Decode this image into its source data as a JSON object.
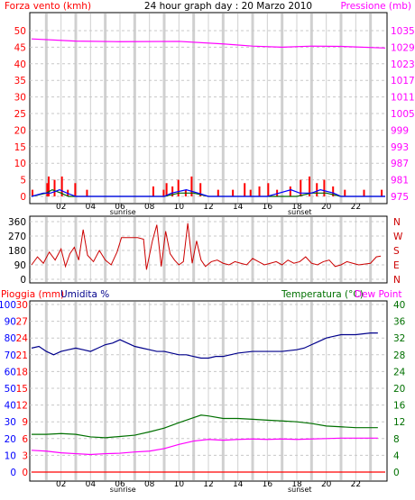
{
  "chart_data": [
    {
      "id": "wind-pressure",
      "type": "bar",
      "title": "24 hour graph day : 20 Marzo 2010",
      "ylabel_left": "Forza vento (kmh)",
      "ylabel_right": "Pressione (mb)",
      "ylim_left": [
        0,
        50
      ],
      "ylim_right": [
        975,
        1035
      ],
      "yticks_left": [
        "0",
        "5",
        "10",
        "15",
        "20",
        "25",
        "30",
        "35",
        "40",
        "45",
        "50"
      ],
      "yticks_right": [
        "975",
        "981",
        "987",
        "993",
        "999",
        "1005",
        "1011",
        "1017",
        "1023",
        "1029",
        "1035"
      ],
      "xlim": [
        0,
        24
      ],
      "xticks": [
        "02",
        "04",
        "06",
        "08",
        "10",
        "12",
        "14",
        "16",
        "18",
        "20",
        "22"
      ],
      "markers": [
        "sunrise",
        "sunset"
      ],
      "grid": true,
      "colors": {
        "wind_bars": "#ff0000",
        "gust_line": "#006400",
        "avg_line": "#0000ff",
        "pressure": "#ff00ff",
        "grid": "#c8c8c8",
        "left_axis": "#ff0000",
        "right_axis": "#ff00ff"
      },
      "series": [
        {
          "name": "pressure",
          "color": "#ff00ff",
          "x": [
            0,
            3,
            6,
            10,
            13,
            15,
            17,
            19,
            21,
            24
          ],
          "values": [
            1032.0,
            1031.2,
            1031.0,
            1031.1,
            1030.2,
            1029.4,
            1029.0,
            1029.4,
            1029.3,
            1028.7
          ]
        },
        {
          "name": "wind",
          "color": "#ff0000",
          "x": [
            0.0,
            1.0,
            1.1,
            1.5,
            2.0,
            2.4,
            2.9,
            3.7,
            8.2,
            8.9,
            9.1,
            9.5,
            9.9,
            10.4,
            10.8,
            11.4,
            12.6,
            13.6,
            14.4,
            14.8,
            15.4,
            16.0,
            16.6,
            17.5,
            18.2,
            18.8,
            19.3,
            19.8,
            20.4,
            21.2,
            22.5,
            23.7
          ],
          "values": [
            2,
            4,
            6,
            5,
            6,
            2,
            4,
            2,
            3,
            2,
            4,
            3,
            5,
            2,
            6,
            4,
            2,
            2,
            4,
            2,
            3,
            4,
            2,
            3,
            5,
            6,
            4,
            5,
            3,
            2,
            2,
            2
          ]
        },
        {
          "name": "gust",
          "color": "#006400",
          "x": [
            0,
            1,
            1.4,
            2,
            2.5,
            3,
            9,
            10,
            11,
            12,
            14,
            16,
            18,
            19,
            20,
            21,
            24
          ],
          "values": [
            0,
            1,
            2,
            1,
            0,
            0,
            0,
            1,
            1,
            0,
            0,
            0,
            0,
            1,
            1,
            0,
            0
          ]
        },
        {
          "name": "avg",
          "color": "#0000ff",
          "x": [
            0,
            0.8,
            1.3,
            1.9,
            2.4,
            3,
            9,
            9.5,
            10.5,
            11.3,
            12,
            13,
            14,
            15,
            16,
            16.8,
            17.6,
            18.2,
            19,
            19.6,
            20.5,
            21,
            24
          ],
          "values": [
            0,
            1,
            1,
            2,
            1,
            0,
            0,
            1,
            2,
            1,
            0,
            0,
            0,
            0,
            0,
            1,
            2,
            1,
            1,
            2,
            1,
            0,
            0
          ]
        }
      ]
    },
    {
      "id": "wind-direction",
      "type": "line",
      "ylim": [
        0,
        360
      ],
      "yticks_left": [
        "0",
        "90",
        "180",
        "270",
        "360"
      ],
      "yticks_right": [
        "N",
        "E",
        "S",
        "W",
        "N"
      ],
      "xlim": [
        0,
        24
      ],
      "grid": true,
      "colors": {
        "line": "#cc0000",
        "grid": "#c8c8c8"
      },
      "series": [
        {
          "name": "direction",
          "color": "#cc0000",
          "x": [
            0.0,
            0.4,
            0.8,
            1.2,
            1.6,
            2.0,
            2.3,
            2.6,
            2.9,
            3.2,
            3.5,
            3.8,
            4.2,
            4.6,
            5.0,
            5.4,
            5.8,
            6.1,
            6.4,
            6.8,
            7.2,
            7.6,
            7.8,
            8.2,
            8.5,
            8.8,
            9.1,
            9.4,
            9.7,
            10.0,
            10.3,
            10.6,
            10.9,
            11.2,
            11.5,
            11.8,
            12.2,
            12.6,
            13.0,
            13.4,
            13.8,
            14.2,
            14.6,
            15.0,
            15.4,
            15.8,
            16.2,
            16.6,
            17.0,
            17.4,
            17.8,
            18.2,
            18.6,
            19.0,
            19.4,
            19.8,
            20.2,
            20.6,
            21.0,
            21.4,
            21.8,
            22.2,
            22.6,
            23.0,
            23.4,
            23.7
          ],
          "values": [
            90,
            140,
            100,
            170,
            120,
            190,
            80,
            160,
            200,
            120,
            310,
            150,
            110,
            180,
            120,
            90,
            170,
            260,
            260,
            260,
            260,
            250,
            60,
            240,
            340,
            80,
            300,
            160,
            120,
            90,
            110,
            350,
            100,
            240,
            120,
            80,
            110,
            120,
            100,
            90,
            110,
            100,
            90,
            130,
            110,
            90,
            100,
            110,
            90,
            120,
            100,
            110,
            140,
            100,
            90,
            110,
            120,
            80,
            90,
            110,
            100,
            90,
            95,
            100,
            140,
            145
          ]
        }
      ]
    },
    {
      "id": "temp-humidity",
      "type": "line",
      "ylabel_left_1": "Pioggia (mm)",
      "ylabel_left_2": "Umidita %",
      "ylabel_right": "Temperatura (°C)",
      "ylabel_right_2": "Dew Point",
      "ylim_humidity": [
        0,
        100
      ],
      "ylim_rain": [
        0,
        30
      ],
      "ylim_temp": [
        0,
        40
      ],
      "yticks_humidity": [
        "0",
        "10",
        "20",
        "30",
        "40",
        "50",
        "60",
        "70",
        "80",
        "90",
        "100"
      ],
      "yticks_rain": [
        "0",
        "3",
        "6",
        "9",
        "12",
        "15",
        "18",
        "21",
        "24",
        "27",
        "30"
      ],
      "yticks_temp": [
        "0",
        "4",
        "8",
        "12",
        "16",
        "20",
        "24",
        "28",
        "32",
        "36",
        "40"
      ],
      "xlim": [
        0,
        24
      ],
      "xticks": [
        "02",
        "04",
        "06",
        "08",
        "10",
        "12",
        "14",
        "16",
        "18",
        "20",
        "22"
      ],
      "markers": [
        "sunrise",
        "sunset"
      ],
      "grid": true,
      "colors": {
        "humidity": "#00008b",
        "temperature": "#007000",
        "dewpoint": "#ff00ff",
        "rain": "#ff0000",
        "grid": "#c8c8c8"
      },
      "series": [
        {
          "name": "humidity",
          "color": "#00008b",
          "x": [
            0,
            0.5,
            1,
            1.5,
            2,
            2.5,
            3,
            3.5,
            4,
            4.5,
            5,
            5.5,
            6,
            6.5,
            7,
            7.5,
            8,
            8.5,
            9,
            9.5,
            10,
            10.5,
            11,
            11.5,
            12,
            12.5,
            13,
            13.5,
            14,
            15,
            16,
            17,
            18,
            18.5,
            19,
            19.5,
            20,
            20.5,
            21,
            22,
            23,
            23.5
          ],
          "values": [
            74,
            75,
            72,
            70,
            72,
            73,
            74,
            73,
            72,
            74,
            76,
            77,
            79,
            77,
            75,
            74,
            73,
            72,
            72,
            71,
            70,
            70,
            69,
            68,
            68,
            69,
            69,
            70,
            71,
            72,
            72,
            72,
            73,
            74,
            76,
            78,
            80,
            81,
            82,
            82,
            83,
            83
          ]
        },
        {
          "name": "temperature",
          "color": "#007000",
          "x": [
            0,
            1,
            2,
            3,
            4,
            5,
            6,
            7,
            8,
            9,
            10,
            11,
            11.5,
            12,
            13,
            14,
            15,
            16,
            17,
            18,
            19,
            20,
            21,
            22,
            23,
            23.5
          ],
          "values": [
            9.0,
            9.0,
            9.2,
            9.0,
            8.4,
            8.2,
            8.5,
            8.8,
            9.6,
            10.5,
            11.8,
            13.0,
            13.6,
            13.4,
            12.8,
            12.8,
            12.6,
            12.4,
            12.2,
            12.0,
            11.6,
            11.0,
            10.8,
            10.6,
            10.6,
            10.6
          ]
        },
        {
          "name": "dewpoint",
          "color": "#ff00ff",
          "x": [
            0,
            1,
            2,
            3,
            4,
            5,
            6,
            7,
            8,
            9,
            10,
            11,
            12,
            13,
            14,
            15,
            16,
            17,
            18,
            19,
            20,
            21,
            22,
            23,
            23.5
          ],
          "values": [
            5.2,
            5.0,
            4.6,
            4.4,
            4.2,
            4.4,
            4.5,
            4.8,
            5.0,
            5.6,
            6.6,
            7.4,
            7.8,
            7.6,
            7.8,
            7.9,
            7.8,
            7.9,
            7.8,
            7.9,
            8.0,
            8.1,
            8.1,
            8.1,
            8.1
          ]
        },
        {
          "name": "rain",
          "color": "#ff0000",
          "x": [
            0,
            24
          ],
          "values": [
            0,
            0
          ]
        }
      ]
    }
  ]
}
